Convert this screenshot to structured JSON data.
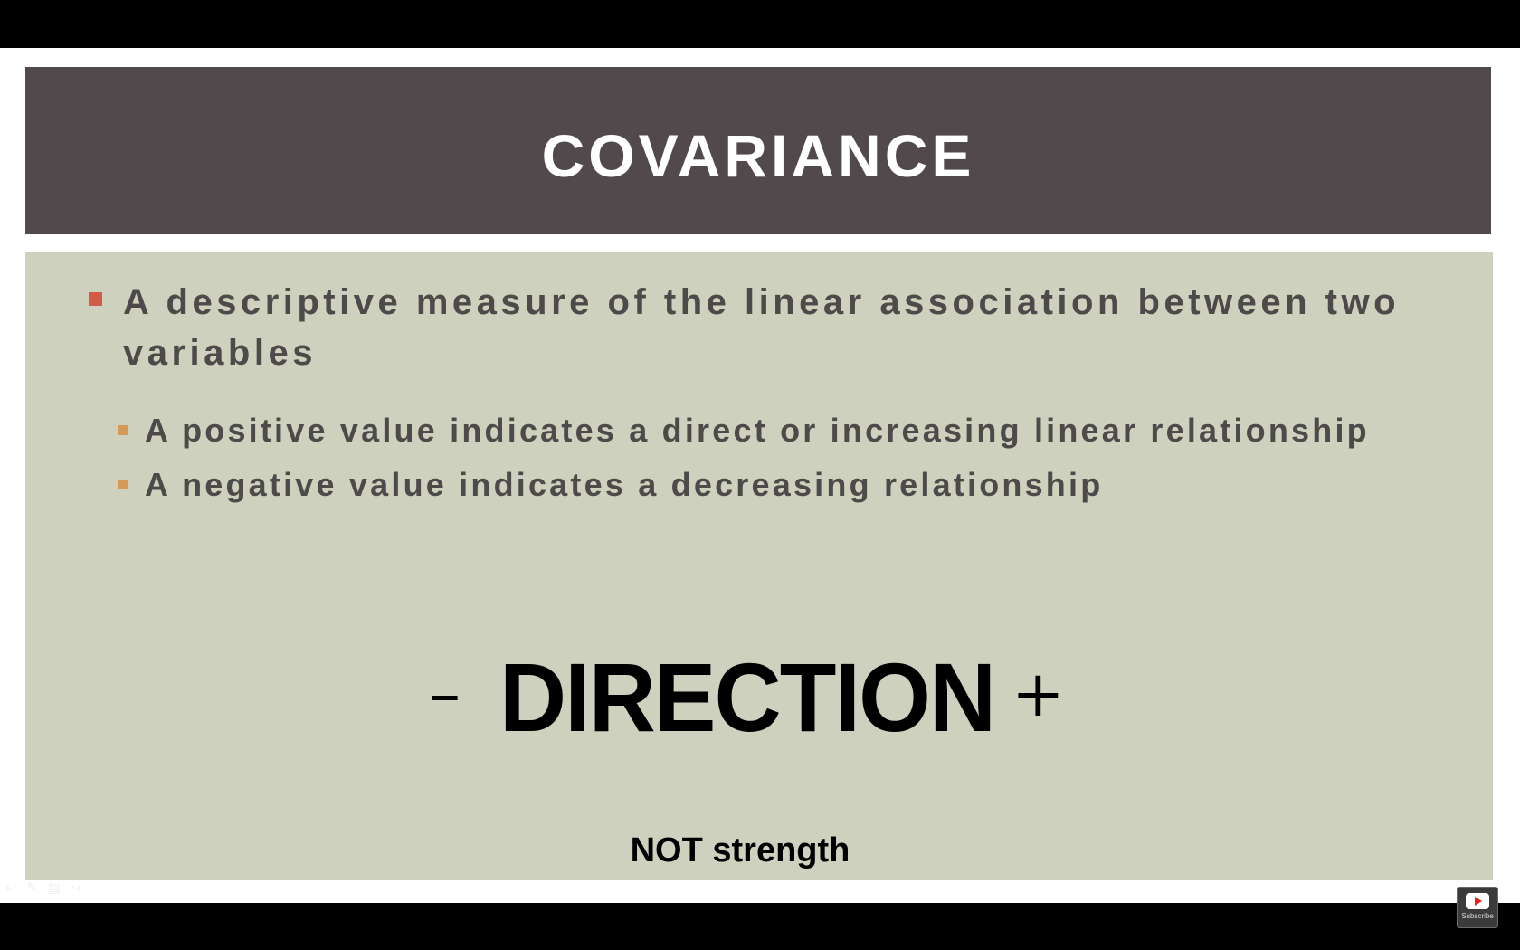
{
  "slide": {
    "title": "COVARIANCE",
    "bullets": [
      {
        "text": "A descriptive measure of the linear association between two variables",
        "sub": [
          "A positive value indicates a direct or increasing linear relationship",
          "A negative value indicates a decreasing relationship"
        ]
      }
    ],
    "direction": {
      "minus": "–",
      "word": "DIRECTION",
      "plus": "+"
    },
    "note": "NOT strength"
  },
  "player": {
    "subscribe_label": "Subscribe"
  },
  "colors": {
    "title_band": "#52494d",
    "content_bg": "#cdd1bd",
    "bullet_l1": "#d25a46",
    "bullet_l2": "#d59a55",
    "body_text": "#4f4a4a"
  }
}
